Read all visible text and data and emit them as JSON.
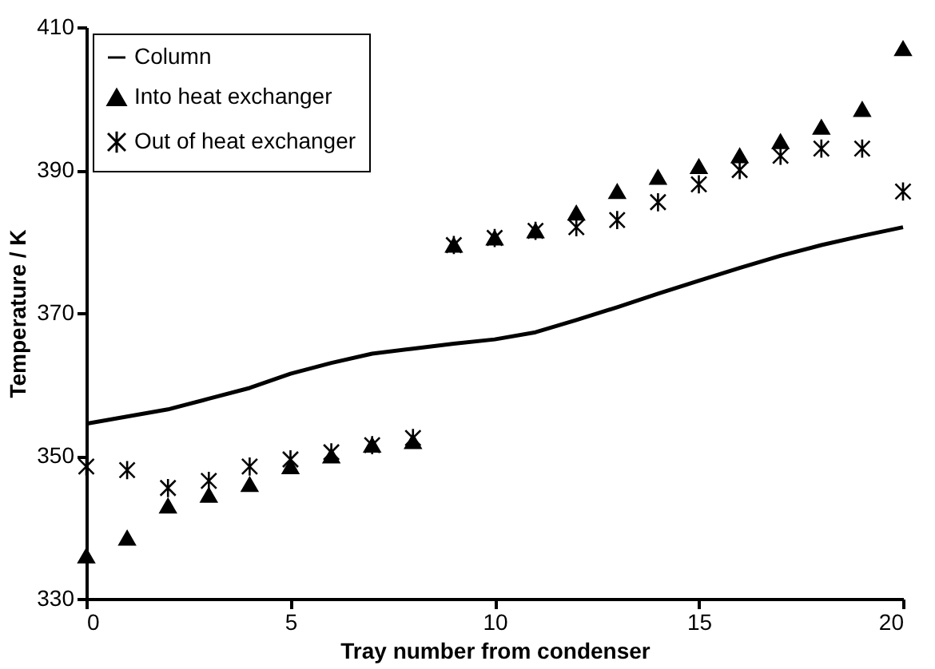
{
  "chart_data": {
    "type": "line",
    "xlabel": "Tray number from condenser",
    "ylabel": "Temperature / K",
    "x": [
      0,
      1,
      2,
      3,
      4,
      5,
      6,
      7,
      8,
      9,
      10,
      11,
      12,
      13,
      14,
      15,
      16,
      17,
      18,
      19,
      20
    ],
    "xlim": [
      0,
      20
    ],
    "xticks": [
      0,
      5,
      10,
      15,
      20
    ],
    "ylim": [
      330,
      410
    ],
    "yticks": [
      330,
      350,
      370,
      390,
      410
    ],
    "grid": false,
    "legend": "top left",
    "series": [
      {
        "name": "Column",
        "color": "#000000",
        "marker": "none",
        "line_style": "solid",
        "values": [
          354.5,
          355.5,
          356.5,
          358,
          359.5,
          361.5,
          363,
          364.3,
          365,
          365.7,
          366.3,
          367.3,
          369,
          370.8,
          372.7,
          374.5,
          376.3,
          378,
          379.5,
          380.8,
          382
        ]
      },
      {
        "name": "Into heat exchanger",
        "type": "scatter",
        "color": "#000000",
        "marker": "triangle",
        "values": [
          336,
          338.5,
          343,
          344.5,
          346,
          348.5,
          350,
          351.5,
          352,
          379.5,
          380.5,
          381.5,
          384,
          387,
          389,
          390.5,
          392,
          394,
          396,
          398.5,
          407
        ]
      },
      {
        "name": "Out of heat exchanger",
        "type": "scatter",
        "color": "#000000",
        "marker": "cross",
        "values": [
          348.5,
          348,
          345.5,
          346.5,
          348.5,
          349.5,
          350.5,
          351.5,
          352.5,
          379.5,
          380.5,
          381.5,
          382,
          383,
          385.5,
          388,
          390,
          392,
          393,
          393,
          387
        ]
      }
    ]
  }
}
